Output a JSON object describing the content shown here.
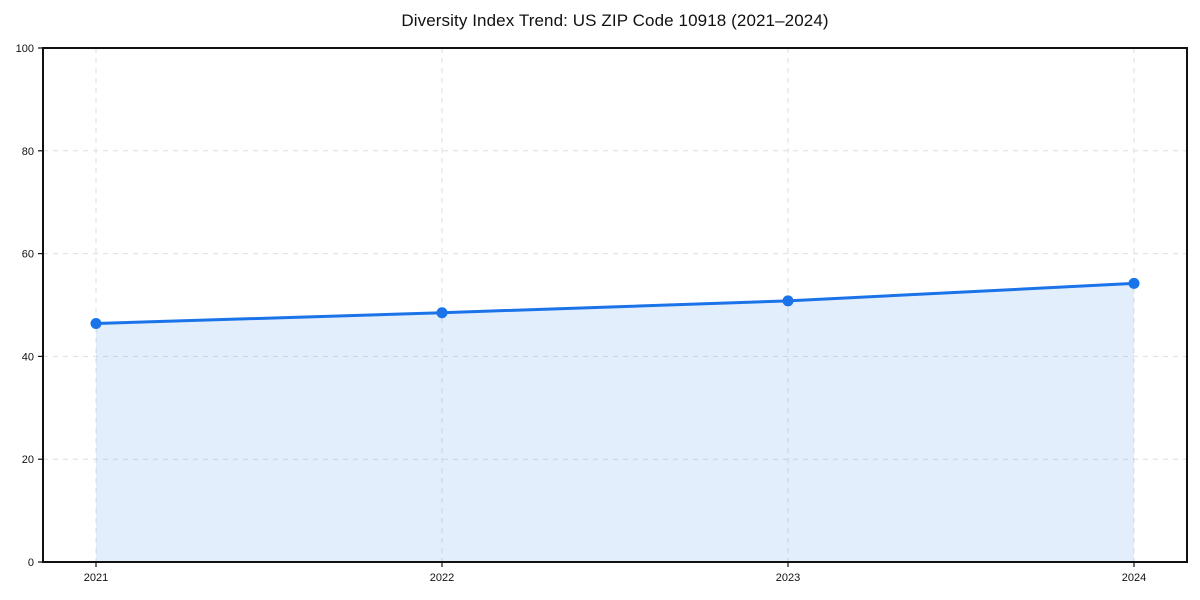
{
  "page": {
    "background": "#ffffff"
  },
  "chart_data": {
    "type": "area",
    "title": "Diversity Index Trend: US ZIP Code 10918 (2021–2024)",
    "categories": [
      "2021",
      "2022",
      "2023",
      "2024"
    ],
    "series": [
      {
        "name": "Diversity Index",
        "values": [
          46.4,
          48.5,
          50.8,
          54.2
        ]
      }
    ],
    "xlabel": "",
    "ylabel": "",
    "ylim": [
      0,
      100
    ],
    "yticks": [
      0,
      20,
      40,
      60,
      80,
      100
    ],
    "grid": true,
    "grid_style": "dashed",
    "legend_position": "none",
    "colors": {
      "line": "#1a73e8",
      "marker": "#1a73e8",
      "fill": "rgba(26,115,232,0.12)",
      "grid": "#dedede",
      "axis": "#111111",
      "tick_label": "#111111",
      "title": "#111111"
    }
  }
}
